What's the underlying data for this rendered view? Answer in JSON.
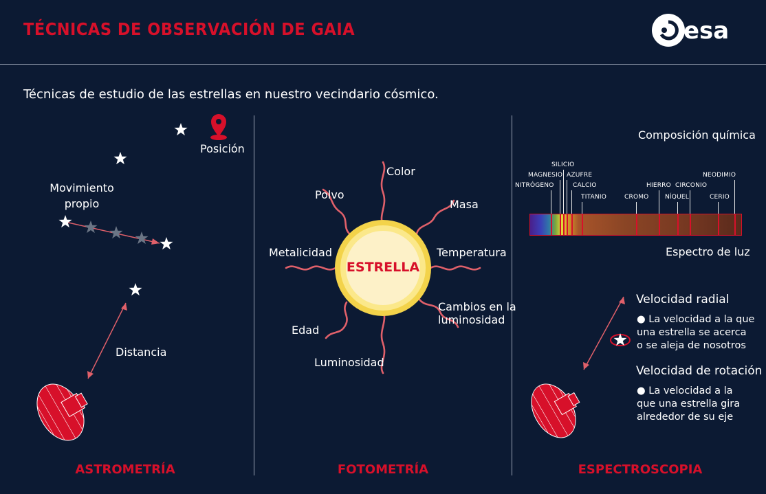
{
  "header": {
    "title": "TÉCNICAS DE OBSERVACIÓN DE GAIA",
    "logo_text": "esa"
  },
  "subtitle": "Técnicas de estudio de las estrellas en nuestro vecindario cósmico.",
  "astrometry": {
    "section": "ASTROMETRÍA",
    "position_label": "Posición",
    "proper_motion_label_1": "Movimiento",
    "proper_motion_label_2": "propio",
    "distance_label": "Distancia"
  },
  "photometry": {
    "section": "FOTOMETRÍA",
    "star_label": "ESTRELLA",
    "properties": {
      "color": "Color",
      "polvo": "Polvo",
      "masa": "Masa",
      "metalicidad": "Metalicidad",
      "temperatura": "Temperatura",
      "cambios_1": "Cambios en la",
      "cambios_2": "luminosidad",
      "edad": "Edad",
      "luminosidad": "Luminosidad"
    }
  },
  "spectroscopy": {
    "section": "ESPECTROSCOPIA",
    "composition_label": "Composición química",
    "spectrum_label": "Espectro de luz",
    "elements": {
      "silicio": "SILICIO",
      "magnesio": "MAGNESIO",
      "azufre": "AZUFRE",
      "nitrogeno": "NITRÓGENO",
      "calcio": "CALCIO",
      "titanio": "TITANIO",
      "cromo": "CROMO",
      "hierro": "HIERRO",
      "circonio": "CIRCONIO",
      "niquel": "NÍQUEL",
      "neodimio": "NEODIMIO",
      "cerio": "CERIO"
    },
    "radial_title": "Velocidad radial",
    "radial_desc_1": "● La velocidad a la que",
    "radial_desc_2": "una estrella se acerca",
    "radial_desc_3": "o se aleja de nosotros",
    "rotation_title": "Velocidad de rotación",
    "rotation_desc_1": "● La velocidad a la",
    "rotation_desc_2": "que una estrella gira",
    "rotation_desc_3": "alrededor de su eje"
  },
  "colors": {
    "background": "#0c1a33",
    "accent_red": "#d7102a",
    "wave_pink": "#e0606a",
    "star_yellow": "#f7e27a"
  }
}
